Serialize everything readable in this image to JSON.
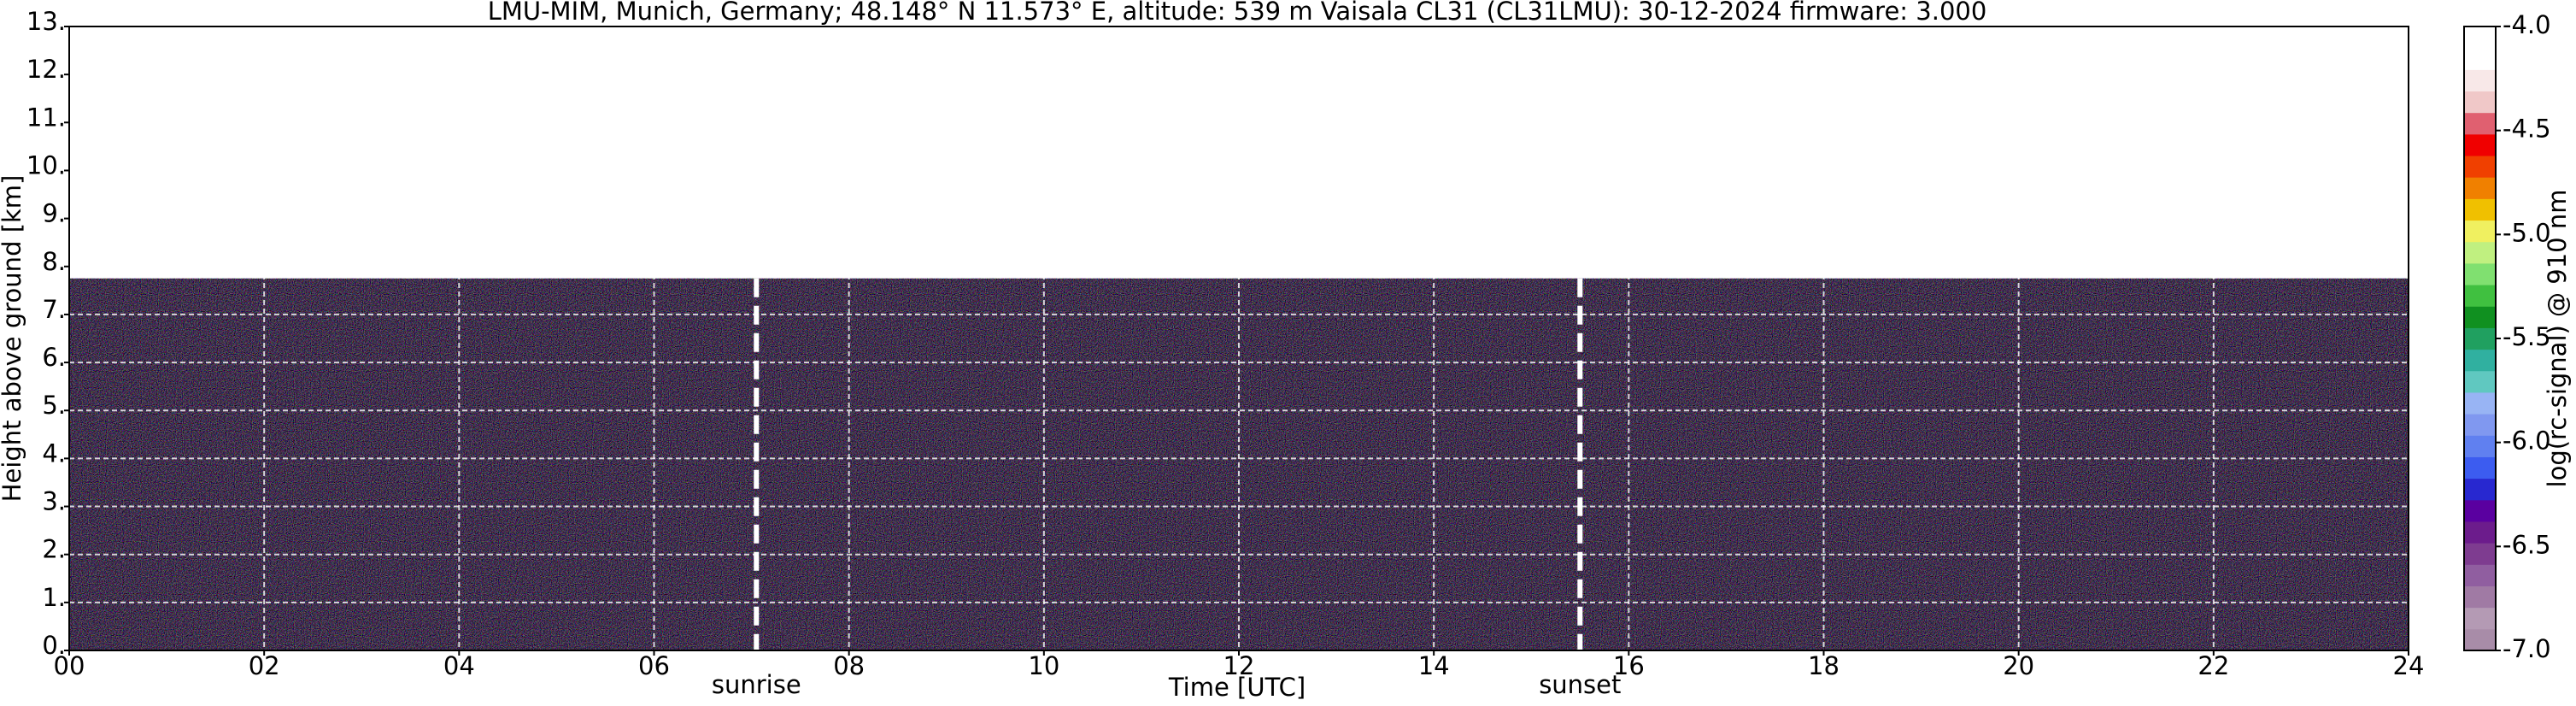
{
  "chart_data": {
    "type": "heatmap",
    "title": "LMU-MIM, Munich, Germany; 48.148° N 11.573° E, altitude: 539 m    Vaisala CL31 (CL31LMU): 30-12-2024    firmware: 3.000",
    "x_label": "Time [UTC]",
    "y_label": "Height above ground [km]",
    "colorbar_label": "log(rc-signal) @ 910 nm",
    "xlim": [
      0,
      24
    ],
    "xticks": [
      {
        "value": 0,
        "label": "00"
      },
      {
        "value": 2,
        "label": "02"
      },
      {
        "value": 4,
        "label": "04"
      },
      {
        "value": 6,
        "label": "06"
      },
      {
        "value": 8,
        "label": "08"
      },
      {
        "value": 10,
        "label": "10"
      },
      {
        "value": 12,
        "label": "12"
      },
      {
        "value": 14,
        "label": "14"
      },
      {
        "value": 16,
        "label": "16"
      },
      {
        "value": 18,
        "label": "18"
      },
      {
        "value": 20,
        "label": "20"
      },
      {
        "value": 22,
        "label": "22"
      },
      {
        "value": 24,
        "label": "24"
      }
    ],
    "ylim": [
      0,
      13
    ],
    "yticks": [
      {
        "value": 0,
        "label": "0."
      },
      {
        "value": 1,
        "label": "1."
      },
      {
        "value": 2,
        "label": "2."
      },
      {
        "value": 3,
        "label": "3."
      },
      {
        "value": 4,
        "label": "4."
      },
      {
        "value": 5,
        "label": "5."
      },
      {
        "value": 6,
        "label": "6."
      },
      {
        "value": 7,
        "label": "7."
      },
      {
        "value": 8,
        "label": "8."
      },
      {
        "value": 9,
        "label": "9."
      },
      {
        "value": 10,
        "label": "10."
      },
      {
        "value": 11,
        "label": "11."
      },
      {
        "value": 12,
        "label": "12."
      },
      {
        "value": 13,
        "label": "13."
      }
    ],
    "signal_range": [
      0,
      7.75
    ],
    "annotations": [
      {
        "text": "sunrise",
        "x": 7.05
      },
      {
        "text": "sunset",
        "x": 15.5
      }
    ],
    "zlim": [
      -7,
      -4
    ],
    "zticks": [
      {
        "value": -4,
        "label": "-4.0"
      },
      {
        "value": -4.5,
        "label": "-4.5"
      },
      {
        "value": -5,
        "label": "-5.0"
      },
      {
        "value": -5.5,
        "label": "-5.5"
      },
      {
        "value": -6,
        "label": "-6.0"
      },
      {
        "value": -6.5,
        "label": "-6.5"
      },
      {
        "value": -7,
        "label": "-7.0"
      }
    ],
    "colormap": [
      "#a88ca8",
      "#b49ab4",
      "#a07aa4",
      "#905ea0",
      "#7e3c90",
      "#6c1c8c",
      "#5a00a0",
      "#2828d0",
      "#3c5cf0",
      "#6080f0",
      "#8098f0",
      "#98b4f4",
      "#60c8c0",
      "#30b0a0",
      "#20a060",
      "#109020",
      "#40c040",
      "#80e070",
      "#c0f080",
      "#f0f060",
      "#f0c000",
      "#f08000",
      "#f04000",
      "#f00000",
      "#e06070",
      "#f0c8c8",
      "#f8e8e8",
      "#ffffff",
      "#ffffff"
    ],
    "grid": true
  }
}
